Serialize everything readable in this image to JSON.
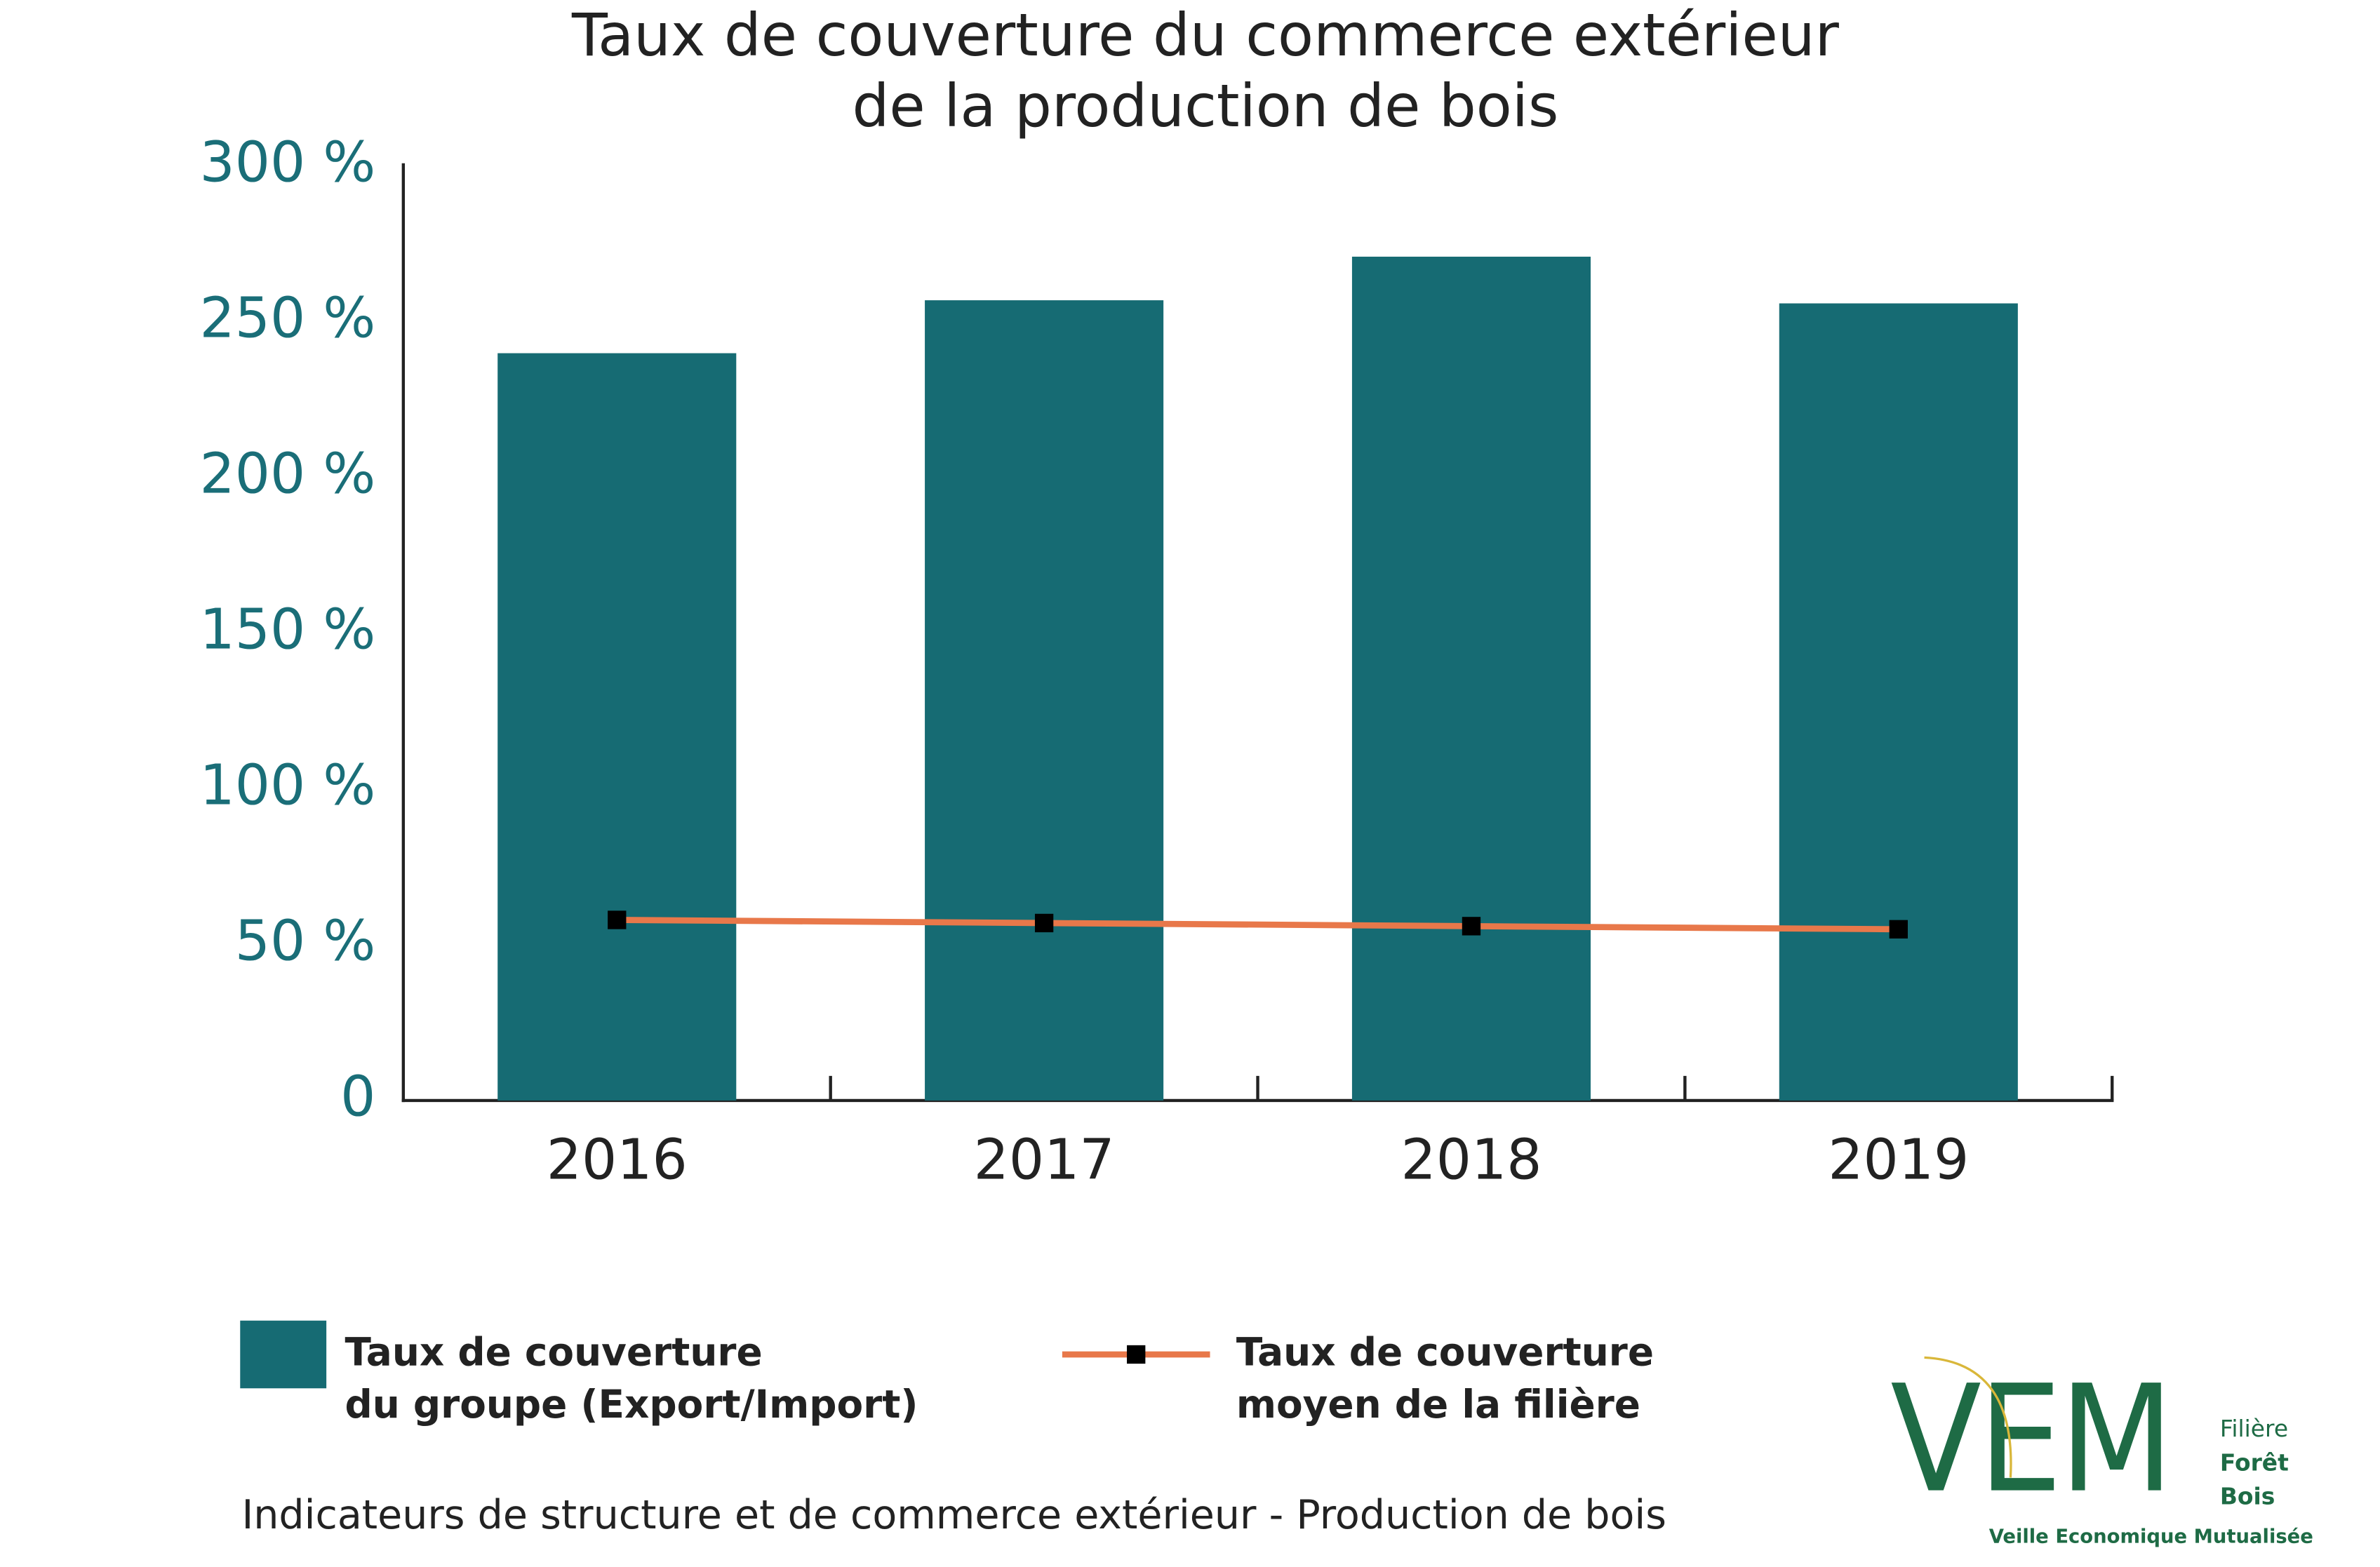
{
  "chart_data": {
    "type": "bar_line",
    "title": "Taux de couverture du commerce extérieur\nde la production de bois",
    "categories": [
      "2016",
      "2017",
      "2018",
      "2019"
    ],
    "series": [
      {
        "name": "Taux de couverture\ndu groupe (Export/Import)",
        "type": "bar",
        "color": "#166b73",
        "values": [
          240,
          257,
          271,
          256
        ]
      },
      {
        "name": "Taux de couverture\nmoyen de la filière",
        "type": "line",
        "color": "#e8784a",
        "marker_color": "#000000",
        "values": [
          58,
          57,
          56,
          55
        ]
      }
    ],
    "ylim": [
      0,
      300
    ],
    "yticks": [
      0,
      {
        "value": 50,
        "label": "50 %"
      },
      {
        "value": 100,
        "label": "100 %"
      },
      {
        "value": 150,
        "label": "150 %"
      },
      {
        "value": 200,
        "label": "200 %"
      },
      {
        "value": 250,
        "label": "250 %"
      },
      {
        "value": 300,
        "label": "300 %"
      }
    ],
    "grid": false,
    "legend": "bottom",
    "footer": "Indicateurs de structure et de commerce extérieur - Production de bois",
    "logo": {
      "mark": "VEM",
      "lines": [
        "Filière",
        "Forêt",
        "Bois"
      ],
      "tagline": "Veille Economique Mutualisée"
    }
  }
}
